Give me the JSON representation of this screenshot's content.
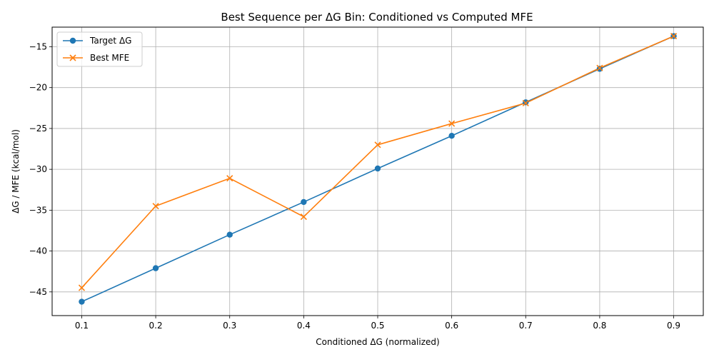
{
  "chart_data": {
    "type": "line",
    "title": "Best Sequence per ΔG Bin: Conditioned vs Computed MFE",
    "xlabel": "Conditioned ΔG (normalized)",
    "ylabel": "ΔG / MFE (kcal/mol)",
    "x": [
      0.1,
      0.2,
      0.3,
      0.4,
      0.5,
      0.6,
      0.7,
      0.8,
      0.9
    ],
    "xlim": [
      0.06,
      0.94
    ],
    "ylim": [
      -47.9,
      -12.6
    ],
    "xticks": [
      0.1,
      0.2,
      0.3,
      0.4,
      0.5,
      0.6,
      0.7,
      0.8,
      0.9
    ],
    "yticks": [
      -45,
      -40,
      -35,
      -30,
      -25,
      -20,
      -15
    ],
    "grid": true,
    "legend_position": "top-left",
    "series": [
      {
        "name": "Target ΔG",
        "marker": "circle",
        "color": "#1f77b4",
        "values": [
          -46.2,
          -42.1,
          -38.0,
          -34.0,
          -29.9,
          -25.9,
          -21.8,
          -17.7,
          -13.7
        ]
      },
      {
        "name": "Best MFE",
        "marker": "x",
        "color": "#ff7f0e",
        "values": [
          -44.5,
          -34.5,
          -31.1,
          -35.8,
          -27.0,
          -24.4,
          -21.9,
          -17.6,
          -13.7
        ]
      }
    ]
  }
}
